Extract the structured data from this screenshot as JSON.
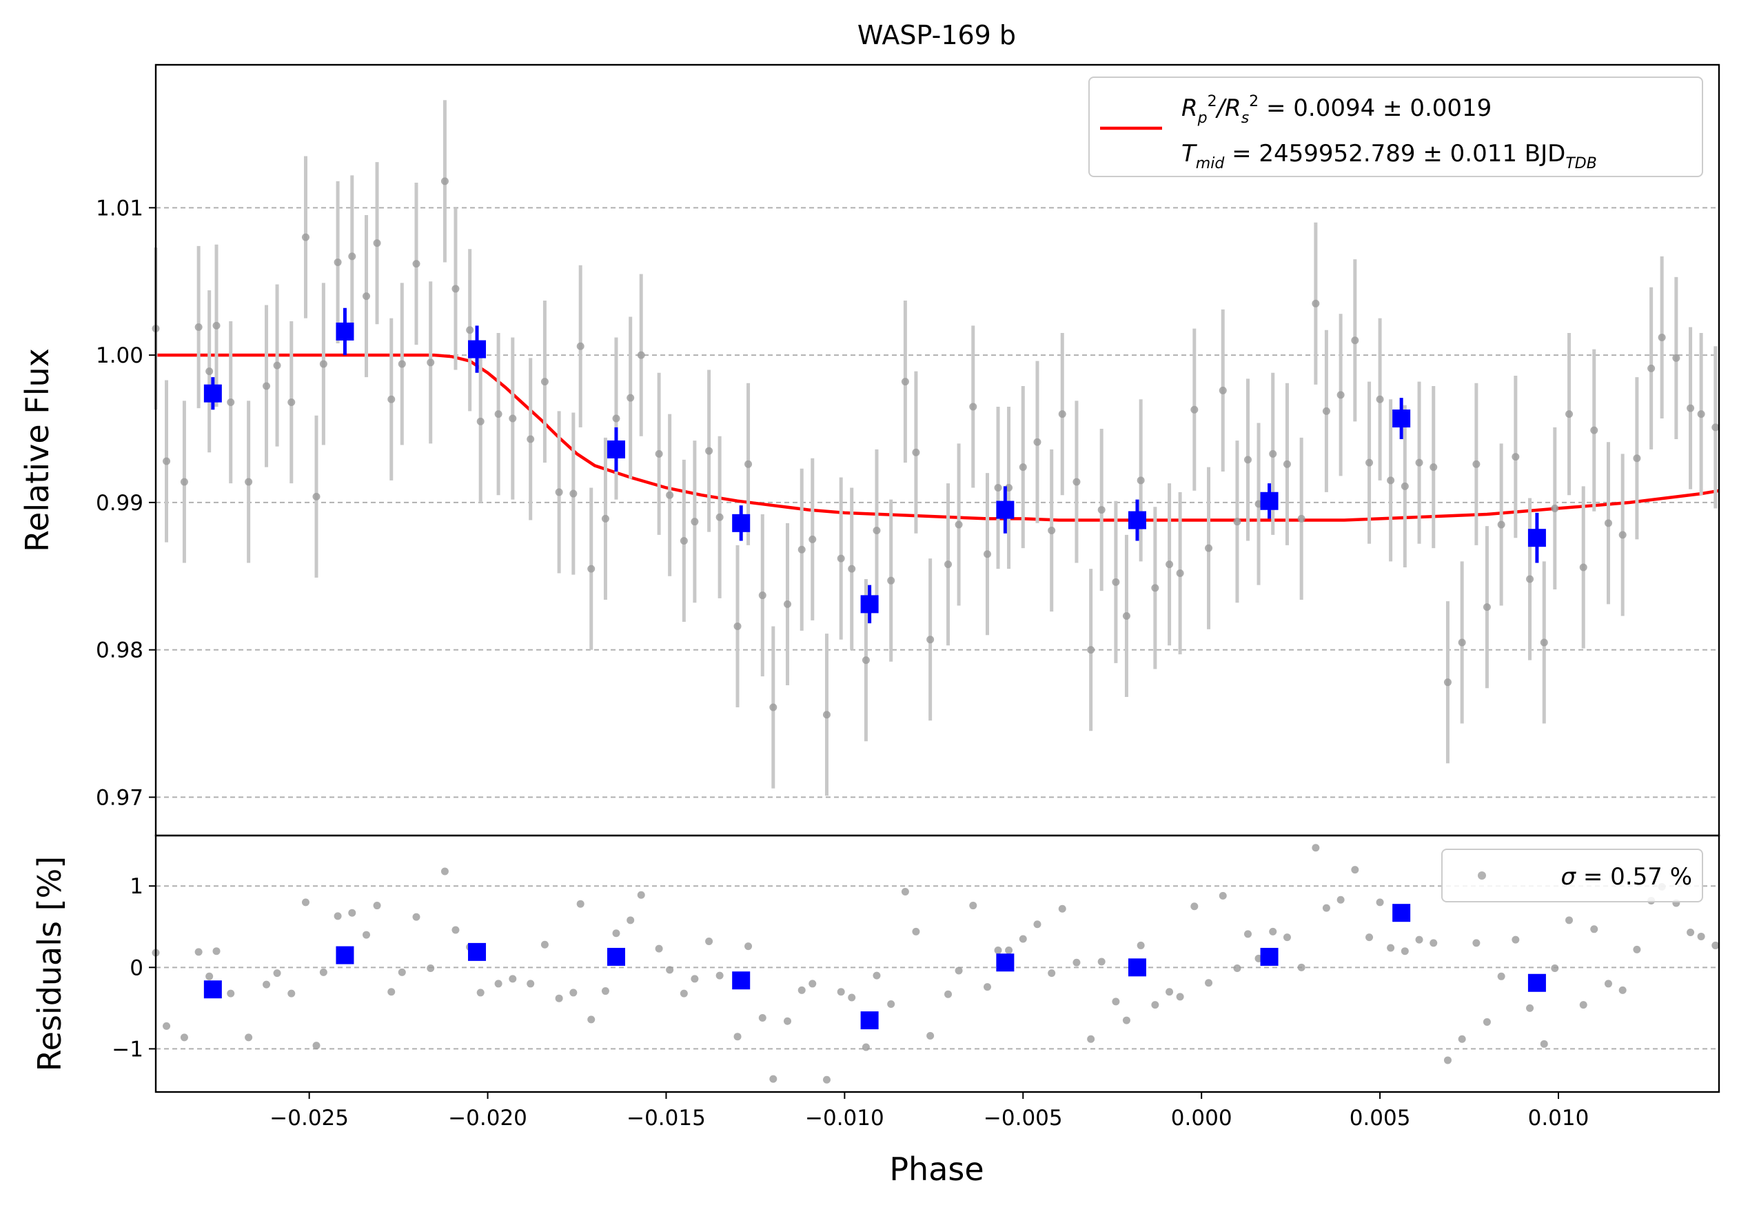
{
  "chart_data": [
    {
      "type": "scatter",
      "title": "WASP-169 b",
      "xlabel": "",
      "ylabel": "Relative Flux",
      "xlim": [
        -0.0293,
        0.0145
      ],
      "ylim": [
        0.9674,
        1.0197
      ],
      "yticks": [
        0.97,
        0.98,
        0.99,
        1.0,
        1.01
      ],
      "ytick_labels": [
        "0.97",
        "0.98",
        "0.99",
        "1.00",
        "1.01"
      ],
      "grid": "horizontal dashed",
      "legend": {
        "placement": "top-right",
        "line1_lhs": "R",
        "line1_sub1": "p",
        "line1_sup1": "2",
        "line1_slash": "/R",
        "line1_sub2": "s",
        "line1_sup2": "2",
        "line1_value": " = 0.0094 ± 0.0019",
        "line2_lhs": "T",
        "line2_sub": "mid",
        "line2_value": " = 2459952.789 ± 0.011 BJD",
        "line2_unit_sub": "TDB"
      },
      "colors": {
        "raw": "#9a9a9a",
        "errorbar_raw": "#c8c8c8",
        "binned": "#0000ff",
        "model": "#ff0000"
      },
      "raw": {
        "x": [
          -0.0293,
          -0.029,
          -0.0285,
          -0.0281,
          -0.0278,
          -0.0276,
          -0.0272,
          -0.0267,
          -0.0262,
          -0.0259,
          -0.0255,
          -0.0251,
          -0.0248,
          -0.0246,
          -0.0242,
          -0.0238,
          -0.0234,
          -0.0231,
          -0.0227,
          -0.0224,
          -0.022,
          -0.0216,
          -0.0212,
          -0.0209,
          -0.0205,
          -0.0202,
          -0.0197,
          -0.0193,
          -0.0188,
          -0.0184,
          -0.018,
          -0.0176,
          -0.0174,
          -0.0171,
          -0.0167,
          -0.0164,
          -0.016,
          -0.0157,
          -0.0152,
          -0.0149,
          -0.0145,
          -0.0142,
          -0.0138,
          -0.0135,
          -0.013,
          -0.0127,
          -0.0123,
          -0.012,
          -0.0116,
          -0.0112,
          -0.0109,
          -0.0105,
          -0.0101,
          -0.0098,
          -0.0094,
          -0.0091,
          -0.0087,
          -0.0083,
          -0.008,
          -0.0076,
          -0.0071,
          -0.0068,
          -0.0064,
          -0.006,
          -0.0057,
          -0.0054,
          -0.005,
          -0.0046,
          -0.0042,
          -0.0039,
          -0.0035,
          -0.0031,
          -0.0028,
          -0.0024,
          -0.0021,
          -0.0017,
          -0.0013,
          -0.0009,
          -0.0006,
          -0.0002,
          0.0002,
          0.0006,
          0.001,
          0.0013,
          0.0016,
          0.002,
          0.0024,
          0.0028,
          0.0032,
          0.0035,
          0.0039,
          0.0043,
          0.0047,
          0.005,
          0.0053,
          0.0057,
          0.0061,
          0.0065,
          0.0069,
          0.0073,
          0.0077,
          0.008,
          0.0084,
          0.0088,
          0.0092,
          0.0096,
          0.0099,
          0.0103,
          0.0107,
          0.011,
          0.0114,
          0.0118,
          0.0122,
          0.0126,
          0.0129,
          0.0133,
          0.0137,
          0.014,
          0.0144
        ],
        "y": [
          1.0018,
          0.9928,
          0.9914,
          1.0019,
          0.9989,
          1.002,
          0.9968,
          0.9914,
          0.9979,
          0.9993,
          0.9968,
          1.008,
          0.9904,
          0.9994,
          1.0063,
          1.0067,
          1.004,
          1.0076,
          0.997,
          0.9994,
          1.0062,
          0.9995,
          1.0118,
          1.0045,
          1.0017,
          0.9955,
          0.996,
          0.9957,
          0.9943,
          0.9982,
          0.9907,
          0.9906,
          1.0006,
          0.9855,
          0.9889,
          0.9957,
          0.9971,
          1.0,
          0.9933,
          0.9905,
          0.9874,
          0.9887,
          0.9935,
          0.989,
          0.9816,
          0.9926,
          0.9837,
          0.9761,
          0.9831,
          0.9868,
          0.9875,
          0.9756,
          0.9862,
          0.9855,
          0.9793,
          0.9881,
          0.9847,
          0.9982,
          0.9934,
          0.9807,
          0.9858,
          0.9885,
          0.9965,
          0.9865,
          0.991,
          0.991,
          0.9924,
          0.9941,
          0.9881,
          0.996,
          0.9914,
          0.98,
          0.9895,
          0.9846,
          0.9823,
          0.9915,
          0.9842,
          0.9858,
          0.9852,
          0.9963,
          0.9869,
          0.9976,
          0.9887,
          0.9929,
          0.9899,
          0.9933,
          0.9926,
          0.9889,
          1.0035,
          0.9962,
          0.9973,
          1.001,
          0.9927,
          0.997,
          0.9915,
          0.9911,
          0.9927,
          0.9924,
          0.9778,
          0.9805,
          0.9926,
          0.9829,
          0.9885,
          0.9931,
          0.9848,
          0.9805,
          0.9896,
          0.996,
          0.9856,
          0.9949,
          0.9886,
          0.9878,
          0.993,
          0.9991,
          1.0012,
          0.9998,
          0.9964,
          0.996,
          0.9951
        ],
        "err": [
          0.0055,
          0.0055,
          0.0055,
          0.0055,
          0.0055,
          0.0055,
          0.0055,
          0.0055,
          0.0055,
          0.0055,
          0.0055,
          0.0055,
          0.0055,
          0.0055,
          0.0055,
          0.0055,
          0.0055,
          0.0055,
          0.0055,
          0.0055,
          0.0055,
          0.0055,
          0.0055,
          0.0055,
          0.0055,
          0.0055,
          0.0055,
          0.0055,
          0.0055,
          0.0055,
          0.0055,
          0.0055,
          0.0055,
          0.0055,
          0.0055,
          0.0055,
          0.0055,
          0.0055,
          0.0055,
          0.0055,
          0.0055,
          0.0055,
          0.0055,
          0.0055,
          0.0055,
          0.0055,
          0.0055,
          0.0055,
          0.0055,
          0.0055,
          0.0055,
          0.0055,
          0.0055,
          0.0055,
          0.0055,
          0.0055,
          0.0055,
          0.0055,
          0.0055,
          0.0055,
          0.0055,
          0.0055,
          0.0055,
          0.0055,
          0.0055,
          0.0055,
          0.0055,
          0.0055,
          0.0055,
          0.0055,
          0.0055,
          0.0055,
          0.0055,
          0.0055,
          0.0055,
          0.0055,
          0.0055,
          0.0055,
          0.0055,
          0.0055,
          0.0055,
          0.0055,
          0.0055,
          0.0055,
          0.0055,
          0.0055,
          0.0055,
          0.0055,
          0.0055,
          0.0055,
          0.0055,
          0.0055,
          0.0055,
          0.0055,
          0.0055,
          0.0055,
          0.0055,
          0.0055,
          0.0055,
          0.0055,
          0.0055,
          0.0055,
          0.0055,
          0.0055,
          0.0055,
          0.0055,
          0.0055,
          0.0055,
          0.0055,
          0.0055,
          0.0055,
          0.0055,
          0.0055,
          0.0055,
          0.0055,
          0.0055,
          0.0055,
          0.0055,
          0.0055
        ]
      },
      "binned": {
        "x": [
          -0.0277,
          -0.024,
          -0.0203,
          -0.0164,
          -0.0129,
          -0.0093,
          -0.0055,
          -0.0018,
          0.0019,
          0.0056,
          0.0094
        ],
        "y": [
          0.9974,
          1.0016,
          1.0004,
          0.9936,
          0.9886,
          0.9831,
          0.9895,
          0.9888,
          0.9901,
          0.9957,
          0.9876
        ],
        "err": [
          0.0011,
          0.0016,
          0.0016,
          0.0015,
          0.0012,
          0.0013,
          0.0016,
          0.0014,
          0.0012,
          0.0014,
          0.0017
        ]
      },
      "model": {
        "x": [
          -0.0293,
          -0.025,
          -0.0215,
          -0.021,
          -0.0205,
          -0.02,
          -0.0195,
          -0.019,
          -0.0185,
          -0.018,
          -0.0175,
          -0.017,
          -0.016,
          -0.015,
          -0.014,
          -0.013,
          -0.012,
          -0.011,
          -0.01,
          -0.009,
          -0.008,
          -0.007,
          -0.006,
          -0.005,
          -0.004,
          -0.003,
          -0.002,
          -0.001,
          0.0,
          0.001,
          0.002,
          0.003,
          0.004,
          0.005,
          0.006,
          0.007,
          0.008,
          0.009,
          0.01,
          0.011,
          0.012,
          0.013,
          0.014,
          0.0145
        ],
        "y": [
          1.0,
          1.0,
          1.0,
          0.9999,
          0.9996,
          0.9988,
          0.9978,
          0.9967,
          0.9956,
          0.9944,
          0.9933,
          0.9925,
          0.9917,
          0.991,
          0.9905,
          0.9901,
          0.9898,
          0.9895,
          0.9893,
          0.9892,
          0.9891,
          0.989,
          0.9889,
          0.9889,
          0.9888,
          0.9888,
          0.9888,
          0.9888,
          0.9888,
          0.9888,
          0.9888,
          0.9888,
          0.9888,
          0.9889,
          0.989,
          0.9891,
          0.9892,
          0.9894,
          0.9896,
          0.9898,
          0.99,
          0.9903,
          0.9906,
          0.9908
        ]
      }
    },
    {
      "type": "scatter",
      "title": "",
      "xlabel": "Phase",
      "ylabel": "Residuals [%]",
      "xlim": [
        -0.0293,
        0.0145
      ],
      "ylim": [
        -1.53,
        1.62
      ],
      "yticks": [
        -1,
        0,
        1
      ],
      "ytick_labels": [
        "−1",
        "0",
        "1"
      ],
      "xticks": [
        -0.025,
        -0.02,
        -0.015,
        -0.01,
        -0.005,
        0.0,
        0.005,
        0.01
      ],
      "xtick_labels": [
        "−0.025",
        "−0.020",
        "−0.015",
        "−0.010",
        "−0.005",
        "0.000",
        "0.005",
        "0.010"
      ],
      "grid": "horizontal dashed",
      "legend": {
        "placement": "top-right",
        "symbol": "σ",
        "text": " = 0.57 %"
      },
      "colors": {
        "raw": "#9a9a9a",
        "binned": "#0000ff"
      },
      "raw": {
        "x": [
          -0.0293,
          -0.029,
          -0.0285,
          -0.0281,
          -0.0278,
          -0.0276,
          -0.0272,
          -0.0267,
          -0.0262,
          -0.0259,
          -0.0255,
          -0.0251,
          -0.0248,
          -0.0246,
          -0.0242,
          -0.0238,
          -0.0234,
          -0.0231,
          -0.0227,
          -0.0224,
          -0.022,
          -0.0216,
          -0.0212,
          -0.0209,
          -0.0205,
          -0.0202,
          -0.0197,
          -0.0193,
          -0.0188,
          -0.0184,
          -0.018,
          -0.0176,
          -0.0174,
          -0.0171,
          -0.0167,
          -0.0164,
          -0.016,
          -0.0157,
          -0.0152,
          -0.0149,
          -0.0145,
          -0.0142,
          -0.0138,
          -0.0135,
          -0.013,
          -0.0127,
          -0.0123,
          -0.012,
          -0.0116,
          -0.0112,
          -0.0109,
          -0.0105,
          -0.0101,
          -0.0098,
          -0.0094,
          -0.0091,
          -0.0087,
          -0.0083,
          -0.008,
          -0.0076,
          -0.0071,
          -0.0068,
          -0.0064,
          -0.006,
          -0.0057,
          -0.0054,
          -0.005,
          -0.0046,
          -0.0042,
          -0.0039,
          -0.0035,
          -0.0031,
          -0.0028,
          -0.0024,
          -0.0021,
          -0.0017,
          -0.0013,
          -0.0009,
          -0.0006,
          -0.0002,
          0.0002,
          0.0006,
          0.001,
          0.0013,
          0.0016,
          0.002,
          0.0024,
          0.0028,
          0.0032,
          0.0035,
          0.0039,
          0.0043,
          0.0047,
          0.005,
          0.0053,
          0.0057,
          0.0061,
          0.0065,
          0.0069,
          0.0073,
          0.0077,
          0.008,
          0.0084,
          0.0088,
          0.0092,
          0.0096,
          0.0099,
          0.0103,
          0.0107,
          0.011,
          0.0114,
          0.0118,
          0.0122,
          0.0126,
          0.0129,
          0.0133,
          0.0137,
          0.014,
          0.0144
        ],
        "y": [
          0.18,
          -0.72,
          -0.86,
          0.19,
          -0.11,
          0.2,
          -0.32,
          -0.86,
          -0.21,
          -0.07,
          -0.32,
          0.8,
          -0.96,
          -0.06,
          0.63,
          0.67,
          0.4,
          0.76,
          -0.3,
          -0.06,
          0.62,
          -0.01,
          1.18,
          0.46,
          0.25,
          -0.31,
          -0.2,
          -0.14,
          -0.2,
          0.28,
          -0.38,
          -0.31,
          0.78,
          -0.64,
          -0.29,
          0.42,
          0.58,
          0.89,
          0.23,
          -0.03,
          -0.32,
          -0.14,
          0.32,
          -0.1,
          -0.85,
          0.26,
          -0.62,
          -1.37,
          -0.66,
          -0.28,
          -0.2,
          -1.38,
          -0.3,
          -0.37,
          -0.98,
          -0.1,
          -0.45,
          0.93,
          0.44,
          -0.84,
          -0.33,
          -0.04,
          0.76,
          -0.24,
          0.21,
          0.21,
          0.35,
          0.53,
          -0.07,
          0.72,
          0.06,
          -0.88,
          0.07,
          -0.42,
          -0.65,
          0.27,
          -0.46,
          -0.3,
          -0.36,
          0.75,
          -0.19,
          0.88,
          -0.01,
          0.41,
          0.11,
          0.44,
          0.37,
          0.0,
          1.47,
          0.73,
          0.83,
          1.2,
          0.37,
          0.8,
          0.24,
          0.2,
          0.34,
          0.3,
          -1.14,
          -0.88,
          0.3,
          -0.67,
          -0.11,
          0.34,
          -0.5,
          -0.94,
          -0.01,
          0.58,
          -0.46,
          0.47,
          -0.2,
          -0.28,
          0.22,
          0.82,
          0.99,
          0.79,
          0.43,
          0.38,
          0.27
        ]
      },
      "binned": {
        "x": [
          -0.0277,
          -0.024,
          -0.0203,
          -0.0164,
          -0.0129,
          -0.0093,
          -0.0055,
          -0.0018,
          0.0019,
          0.0056,
          0.0094
        ],
        "y": [
          -0.27,
          0.15,
          0.19,
          0.13,
          -0.16,
          -0.65,
          0.06,
          0.0,
          0.13,
          0.67,
          -0.19
        ]
      }
    }
  ]
}
